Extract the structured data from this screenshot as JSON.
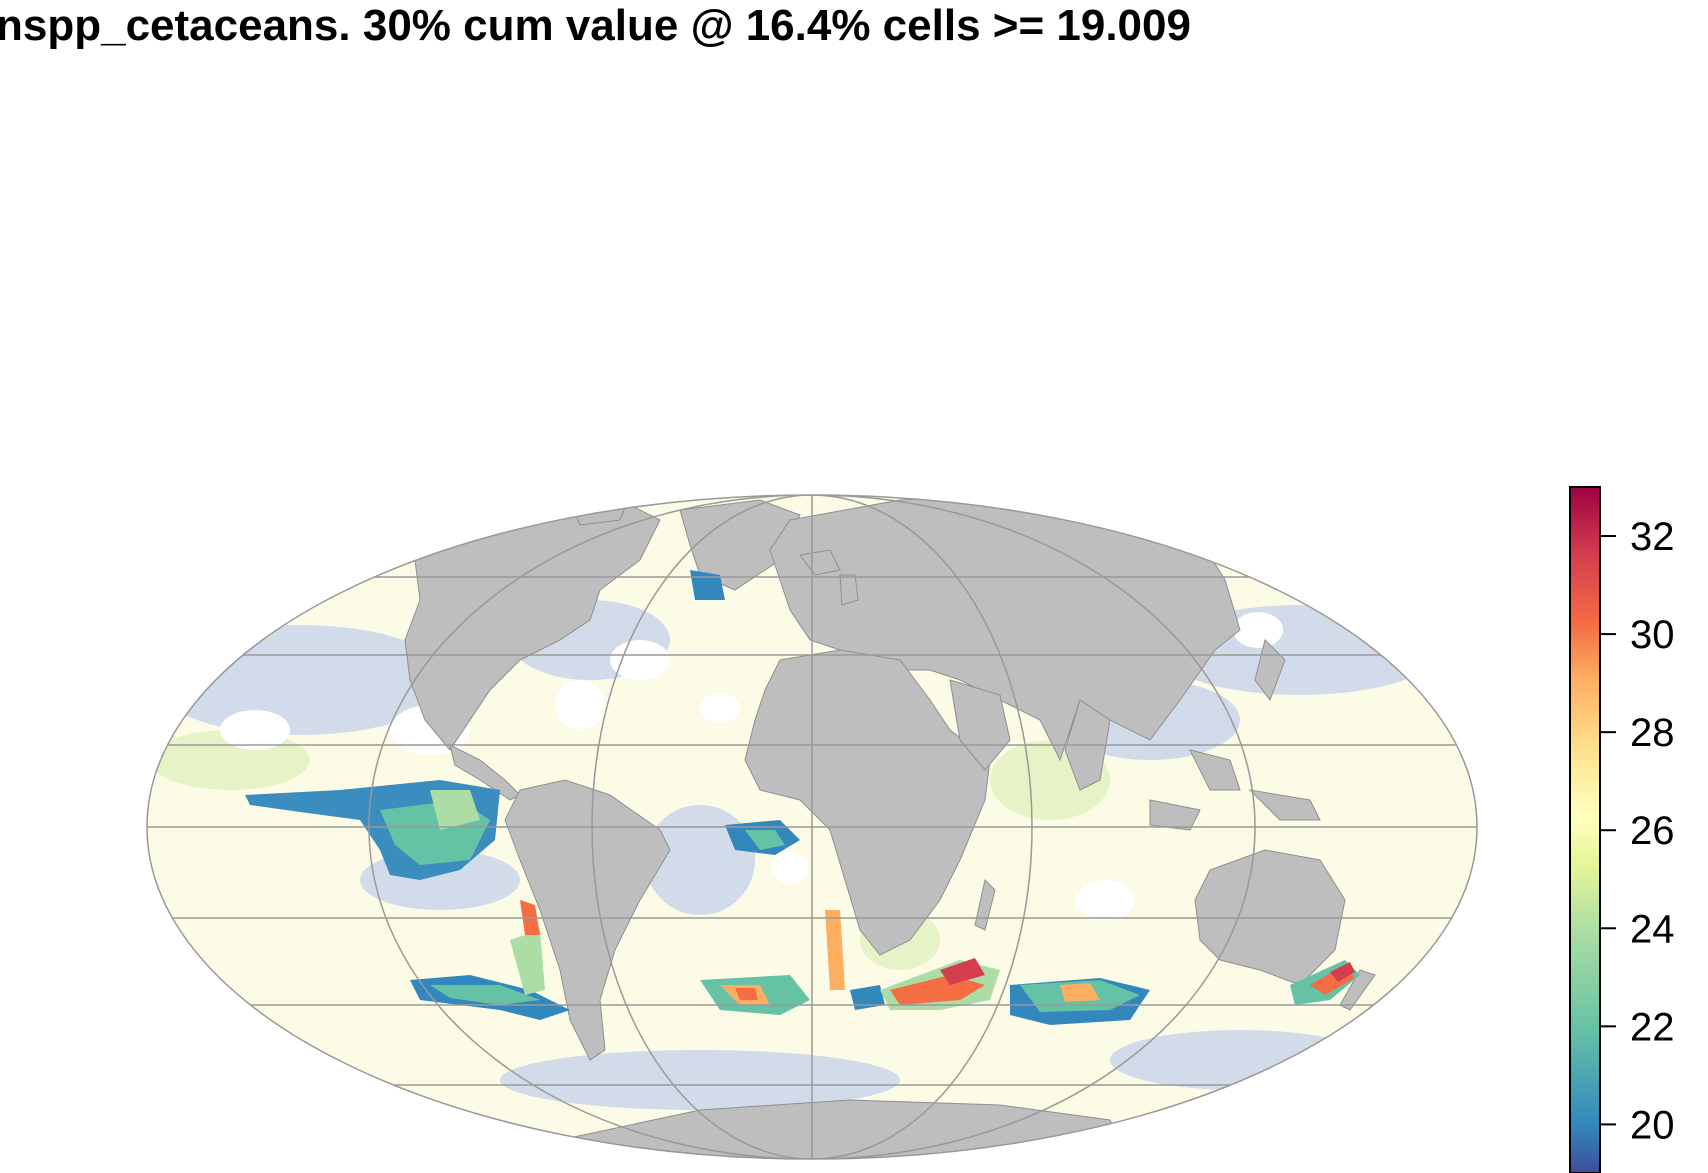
{
  "title": "nspp_cetaceans. 30% cum value @ 16.4% cells >= 19.009",
  "map": {
    "projection": "Mollweide",
    "graticule_color": "#999999",
    "land_color": "#bebebe",
    "ocean_background_color": "#ffffff"
  },
  "legend": {
    "palette": "Spectral (reversed)",
    "range": [
      19.009,
      33
    ],
    "ticks": [
      "20",
      "22",
      "24",
      "26",
      "28",
      "30",
      "32"
    ],
    "tick_values": [
      20,
      22,
      24,
      26,
      28,
      30,
      32
    ],
    "colors": [
      "#3f4c9b",
      "#3288bd",
      "#66c2a5",
      "#abdda4",
      "#e6f598",
      "#ffffbf",
      "#fee08b",
      "#fdae61",
      "#f46d43",
      "#d53e4f",
      "#9e0142"
    ]
  }
}
